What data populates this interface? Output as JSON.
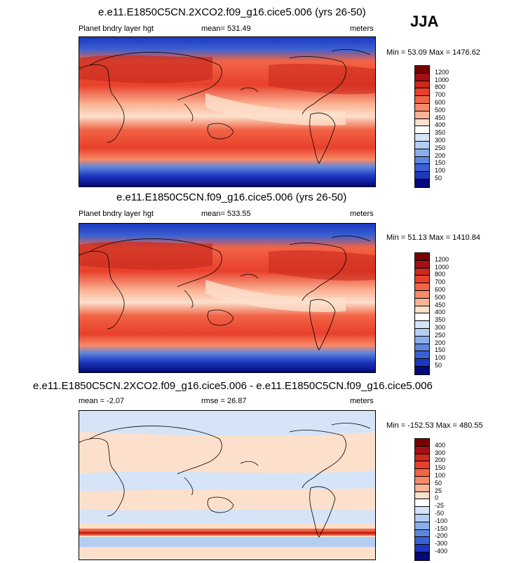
{
  "season": "JJA",
  "panels": [
    {
      "title": "e.e11.E1850C5CN.2XCO2.f09_g16.cice5.006 (yrs 26-50)",
      "left": "Planet bndry layer hgt",
      "center": "mean= 531.49",
      "right": "meters",
      "minmax": "Min =  53.09 Max = 1476.62",
      "colorbar": {
        "labels": [
          "1200",
          "1000",
          "800",
          "700",
          "600",
          "500",
          "450",
          "400",
          "350",
          "300",
          "250",
          "200",
          "150",
          "100",
          "50"
        ],
        "colors": [
          "#7a0000",
          "#a50f15",
          "#cb2a1c",
          "#e8402b",
          "#f26446",
          "#f78a68",
          "#fbb394",
          "#fce0cc",
          "#ffffff",
          "#d6e4f8",
          "#b4cdf2",
          "#8aaeea",
          "#5e86de",
          "#3a60d2",
          "#1c38c0",
          "#04087a"
        ]
      }
    },
    {
      "title": "e.e11.E1850C5CN.f09_g16.cice5.006 (yrs 26-50)",
      "left": "Planet bndry layer hgt",
      "center": "mean= 533.55",
      "right": "meters",
      "minmax": "Min =  51.13 Max = 1410.84",
      "colorbar": {
        "labels": [
          "1200",
          "1000",
          "800",
          "700",
          "600",
          "500",
          "450",
          "400",
          "350",
          "300",
          "250",
          "200",
          "150",
          "100",
          "50"
        ],
        "colors": [
          "#7a0000",
          "#a50f15",
          "#cb2a1c",
          "#e8402b",
          "#f26446",
          "#f78a68",
          "#fbb394",
          "#fce0cc",
          "#ffffff",
          "#d6e4f8",
          "#b4cdf2",
          "#8aaeea",
          "#5e86de",
          "#3a60d2",
          "#1c38c0",
          "#04087a"
        ]
      }
    },
    {
      "title": "e.e11.E1850C5CN.2XCO2.f09_g16.cice5.006 - e.e11.E1850C5CN.f09_g16.cice5.006",
      "left": "mean =  -2.07",
      "center": "rmse =  26.87",
      "right": "meters",
      "minmax": "Min = -152.53 Max = 480.55",
      "colorbar": {
        "labels": [
          "400",
          "300",
          "200",
          "150",
          "100",
          "50",
          "25",
          "0",
          "-25",
          "-50",
          "-100",
          "-150",
          "-200",
          "-300",
          "-400"
        ],
        "colors": [
          "#7a0000",
          "#a50f15",
          "#cb2a1c",
          "#e8402b",
          "#f26446",
          "#f78a68",
          "#fbb394",
          "#fce0cc",
          "#ffffff",
          "#d6e4f8",
          "#b4cdf2",
          "#8aaeea",
          "#5e86de",
          "#3a60d2",
          "#1c38c0",
          "#04087a"
        ]
      }
    }
  ],
  "chart_data": {
    "type": "heatmap",
    "variable": "Planet bndry layer hgt",
    "units": "meters",
    "season": "JJA",
    "panels": [
      {
        "case": "e.e11.E1850C5CN.2XCO2.f09_g16.cice5.006 (yrs 26-50)",
        "mean": 531.49,
        "min": 53.09,
        "max": 1476.62,
        "levels": [
          50,
          100,
          150,
          200,
          250,
          300,
          350,
          400,
          450,
          500,
          600,
          700,
          800,
          1000,
          1200
        ]
      },
      {
        "case": "e.e11.E1850C5CN.f09_g16.cice5.006 (yrs 26-50)",
        "mean": 533.55,
        "min": 51.13,
        "max": 1410.84,
        "levels": [
          50,
          100,
          150,
          200,
          250,
          300,
          350,
          400,
          450,
          500,
          600,
          700,
          800,
          1000,
          1200
        ]
      },
      {
        "case": "e.e11.E1850C5CN.2XCO2.f09_g16.cice5.006 - e.e11.E1850C5CN.f09_g16.cice5.006",
        "mean": -2.07,
        "rmse": 26.87,
        "min": -152.53,
        "max": 480.55,
        "levels": [
          -400,
          -300,
          -200,
          -150,
          -100,
          -50,
          -25,
          0,
          25,
          50,
          100,
          150,
          200,
          300,
          400
        ]
      }
    ]
  }
}
